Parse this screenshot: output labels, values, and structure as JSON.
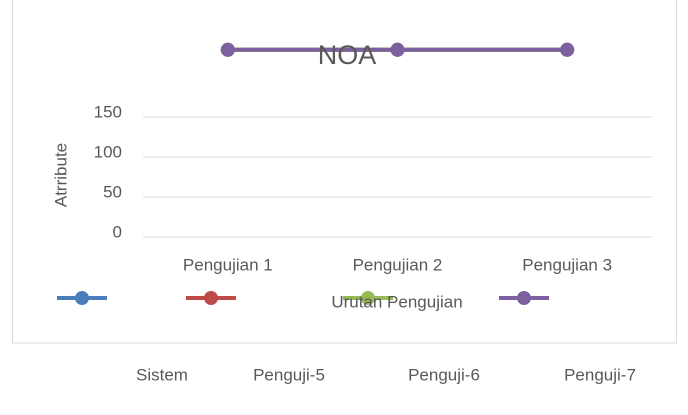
{
  "chart_data": {
    "type": "line",
    "title": "NOA",
    "x_label": "Urutan Pengujian",
    "y_label": "Atrribute",
    "categories": [
      "Pengujian 1",
      "Pengujian 2",
      "Pengujian 3"
    ],
    "series": [
      {
        "name": "Sistem",
        "color": "#4a7ebb",
        "values": [
          234,
          234,
          234
        ]
      },
      {
        "name": "Penguji-5",
        "color": "#be4b48",
        "values": [
          234,
          234,
          234
        ]
      },
      {
        "name": "Penguji-6",
        "color": "#98b954",
        "values": [
          234,
          234,
          234
        ]
      },
      {
        "name": "Penguji-7",
        "color": "#7d60a0",
        "values": [
          234,
          234,
          234
        ]
      }
    ],
    "ylim": [
      0,
      250
    ],
    "yticks": [
      0,
      50,
      100,
      150
    ],
    "grid": true
  }
}
